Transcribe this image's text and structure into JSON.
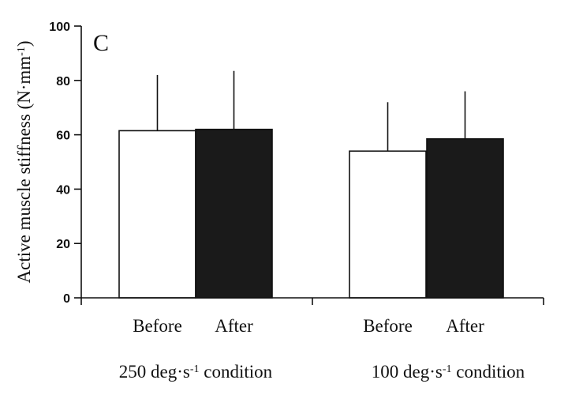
{
  "chart_data": {
    "type": "bar",
    "panel_label": "C",
    "ylabel": "Active muscle stiffness (N·mm",
    "ylabel_sup": "-1",
    "ylabel_close": ")",
    "ylim": [
      0,
      100
    ],
    "yticks": [
      "0",
      "20",
      "40",
      "60",
      "80",
      "100"
    ],
    "groups": [
      {
        "label": "250 deg·s",
        "label_sup": "-1",
        "label_suffix": " condition",
        "bars": [
          {
            "category": "Before",
            "value": 61.5,
            "error_upper": 82,
            "fill": "#ffffff"
          },
          {
            "category": "After",
            "value": 62,
            "error_upper": 83.5,
            "fill": "#1a1a1a"
          }
        ]
      },
      {
        "label": "100 deg·s",
        "label_sup": "-1",
        "label_suffix": " condition",
        "bars": [
          {
            "category": "Before",
            "value": 54,
            "error_upper": 72,
            "fill": "#ffffff"
          },
          {
            "category": "After",
            "value": 58.5,
            "error_upper": 76,
            "fill": "#1a1a1a"
          }
        ]
      }
    ]
  }
}
